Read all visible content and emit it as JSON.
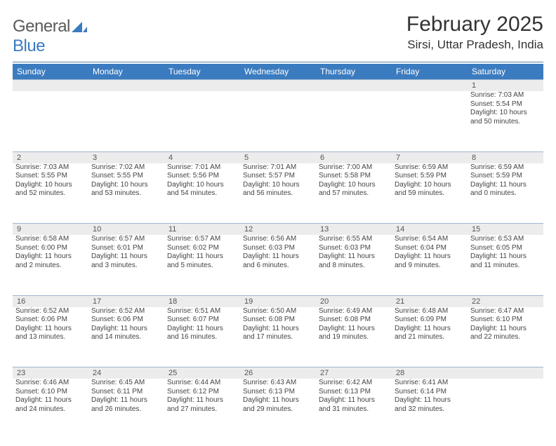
{
  "brand": {
    "general": "General",
    "blue": "Blue"
  },
  "title": "February 2025",
  "location": "Sirsi, Uttar Pradesh, India",
  "colors": {
    "header_bg": "#3b7bbf",
    "header_text": "#ffffff",
    "daynum_bg": "#ececec",
    "rule": "#5a7fa8",
    "row_border": "#9fb6cf"
  },
  "dayNames": [
    "Sunday",
    "Monday",
    "Tuesday",
    "Wednesday",
    "Thursday",
    "Friday",
    "Saturday"
  ],
  "weeks": [
    {
      "nums": [
        "",
        "",
        "",
        "",
        "",
        "",
        "1"
      ],
      "cells": [
        null,
        null,
        null,
        null,
        null,
        null,
        {
          "sunrise": "Sunrise: 7:03 AM",
          "sunset": "Sunset: 5:54 PM",
          "d1": "Daylight: 10 hours",
          "d2": "and 50 minutes."
        }
      ]
    },
    {
      "nums": [
        "2",
        "3",
        "4",
        "5",
        "6",
        "7",
        "8"
      ],
      "cells": [
        {
          "sunrise": "Sunrise: 7:03 AM",
          "sunset": "Sunset: 5:55 PM",
          "d1": "Daylight: 10 hours",
          "d2": "and 52 minutes."
        },
        {
          "sunrise": "Sunrise: 7:02 AM",
          "sunset": "Sunset: 5:55 PM",
          "d1": "Daylight: 10 hours",
          "d2": "and 53 minutes."
        },
        {
          "sunrise": "Sunrise: 7:01 AM",
          "sunset": "Sunset: 5:56 PM",
          "d1": "Daylight: 10 hours",
          "d2": "and 54 minutes."
        },
        {
          "sunrise": "Sunrise: 7:01 AM",
          "sunset": "Sunset: 5:57 PM",
          "d1": "Daylight: 10 hours",
          "d2": "and 56 minutes."
        },
        {
          "sunrise": "Sunrise: 7:00 AM",
          "sunset": "Sunset: 5:58 PM",
          "d1": "Daylight: 10 hours",
          "d2": "and 57 minutes."
        },
        {
          "sunrise": "Sunrise: 6:59 AM",
          "sunset": "Sunset: 5:59 PM",
          "d1": "Daylight: 10 hours",
          "d2": "and 59 minutes."
        },
        {
          "sunrise": "Sunrise: 6:59 AM",
          "sunset": "Sunset: 5:59 PM",
          "d1": "Daylight: 11 hours",
          "d2": "and 0 minutes."
        }
      ]
    },
    {
      "nums": [
        "9",
        "10",
        "11",
        "12",
        "13",
        "14",
        "15"
      ],
      "cells": [
        {
          "sunrise": "Sunrise: 6:58 AM",
          "sunset": "Sunset: 6:00 PM",
          "d1": "Daylight: 11 hours",
          "d2": "and 2 minutes."
        },
        {
          "sunrise": "Sunrise: 6:57 AM",
          "sunset": "Sunset: 6:01 PM",
          "d1": "Daylight: 11 hours",
          "d2": "and 3 minutes."
        },
        {
          "sunrise": "Sunrise: 6:57 AM",
          "sunset": "Sunset: 6:02 PM",
          "d1": "Daylight: 11 hours",
          "d2": "and 5 minutes."
        },
        {
          "sunrise": "Sunrise: 6:56 AM",
          "sunset": "Sunset: 6:03 PM",
          "d1": "Daylight: 11 hours",
          "d2": "and 6 minutes."
        },
        {
          "sunrise": "Sunrise: 6:55 AM",
          "sunset": "Sunset: 6:03 PM",
          "d1": "Daylight: 11 hours",
          "d2": "and 8 minutes."
        },
        {
          "sunrise": "Sunrise: 6:54 AM",
          "sunset": "Sunset: 6:04 PM",
          "d1": "Daylight: 11 hours",
          "d2": "and 9 minutes."
        },
        {
          "sunrise": "Sunrise: 6:53 AM",
          "sunset": "Sunset: 6:05 PM",
          "d1": "Daylight: 11 hours",
          "d2": "and 11 minutes."
        }
      ]
    },
    {
      "nums": [
        "16",
        "17",
        "18",
        "19",
        "20",
        "21",
        "22"
      ],
      "cells": [
        {
          "sunrise": "Sunrise: 6:52 AM",
          "sunset": "Sunset: 6:06 PM",
          "d1": "Daylight: 11 hours",
          "d2": "and 13 minutes."
        },
        {
          "sunrise": "Sunrise: 6:52 AM",
          "sunset": "Sunset: 6:06 PM",
          "d1": "Daylight: 11 hours",
          "d2": "and 14 minutes."
        },
        {
          "sunrise": "Sunrise: 6:51 AM",
          "sunset": "Sunset: 6:07 PM",
          "d1": "Daylight: 11 hours",
          "d2": "and 16 minutes."
        },
        {
          "sunrise": "Sunrise: 6:50 AM",
          "sunset": "Sunset: 6:08 PM",
          "d1": "Daylight: 11 hours",
          "d2": "and 17 minutes."
        },
        {
          "sunrise": "Sunrise: 6:49 AM",
          "sunset": "Sunset: 6:08 PM",
          "d1": "Daylight: 11 hours",
          "d2": "and 19 minutes."
        },
        {
          "sunrise": "Sunrise: 6:48 AM",
          "sunset": "Sunset: 6:09 PM",
          "d1": "Daylight: 11 hours",
          "d2": "and 21 minutes."
        },
        {
          "sunrise": "Sunrise: 6:47 AM",
          "sunset": "Sunset: 6:10 PM",
          "d1": "Daylight: 11 hours",
          "d2": "and 22 minutes."
        }
      ]
    },
    {
      "nums": [
        "23",
        "24",
        "25",
        "26",
        "27",
        "28",
        ""
      ],
      "cells": [
        {
          "sunrise": "Sunrise: 6:46 AM",
          "sunset": "Sunset: 6:10 PM",
          "d1": "Daylight: 11 hours",
          "d2": "and 24 minutes."
        },
        {
          "sunrise": "Sunrise: 6:45 AM",
          "sunset": "Sunset: 6:11 PM",
          "d1": "Daylight: 11 hours",
          "d2": "and 26 minutes."
        },
        {
          "sunrise": "Sunrise: 6:44 AM",
          "sunset": "Sunset: 6:12 PM",
          "d1": "Daylight: 11 hours",
          "d2": "and 27 minutes."
        },
        {
          "sunrise": "Sunrise: 6:43 AM",
          "sunset": "Sunset: 6:13 PM",
          "d1": "Daylight: 11 hours",
          "d2": "and 29 minutes."
        },
        {
          "sunrise": "Sunrise: 6:42 AM",
          "sunset": "Sunset: 6:13 PM",
          "d1": "Daylight: 11 hours",
          "d2": "and 31 minutes."
        },
        {
          "sunrise": "Sunrise: 6:41 AM",
          "sunset": "Sunset: 6:14 PM",
          "d1": "Daylight: 11 hours",
          "d2": "and 32 minutes."
        },
        null
      ]
    }
  ]
}
